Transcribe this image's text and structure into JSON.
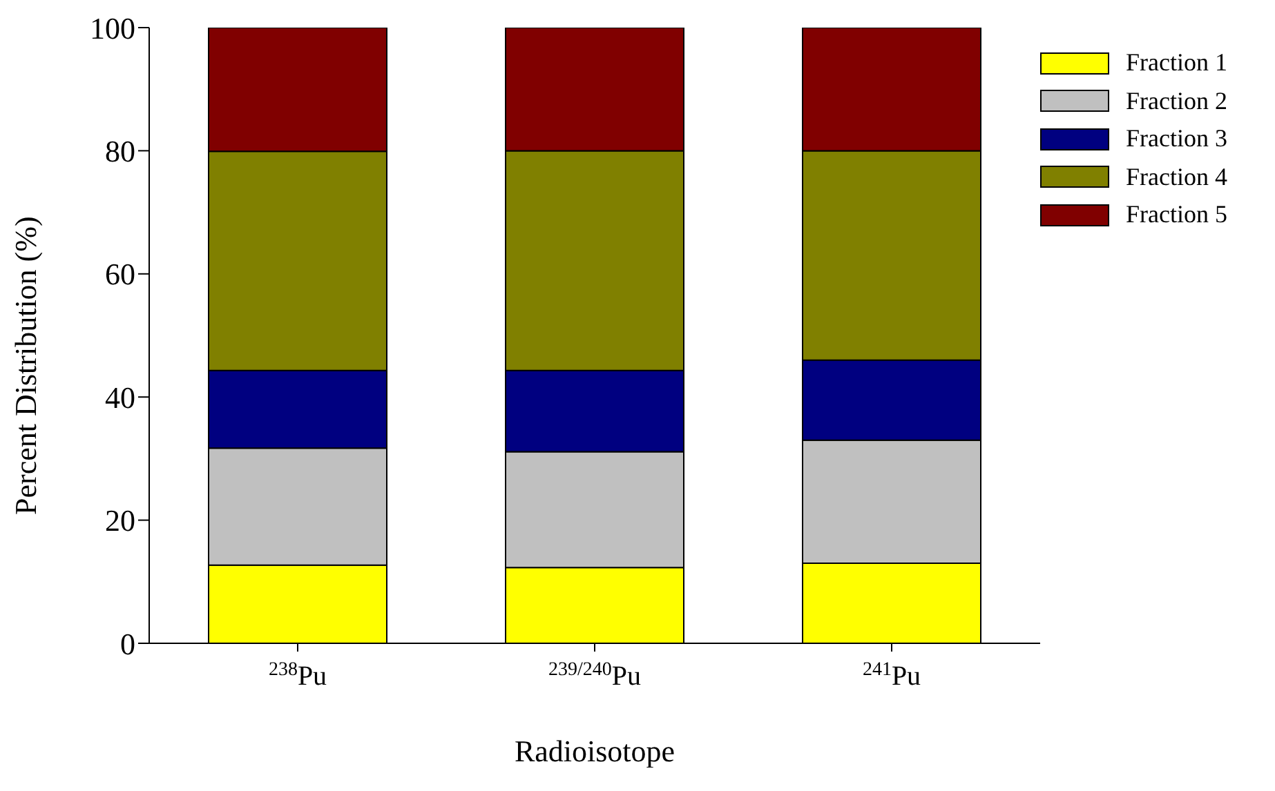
{
  "chart_data": {
    "type": "bar",
    "stacked": true,
    "xlabel": "Radioisotope",
    "ylabel": "Percent Distribution (%)",
    "categories": [
      "$^{238}$Pu",
      "$^{239/240}$Pu",
      "$^{241}$Pu"
    ],
    "series": [
      {
        "name": "Fraction 1",
        "color": "#ffff00",
        "values": [
          12.7,
          12.3,
          13.0
        ]
      },
      {
        "name": "Fraction 2",
        "color": "#c0c0c0",
        "values": [
          19.0,
          18.8,
          20.0
        ]
      },
      {
        "name": "Fraction 3",
        "color": "#000080",
        "values": [
          12.6,
          13.2,
          13.0
        ]
      },
      {
        "name": "Fraction 4",
        "color": "#808000",
        "values": [
          35.6,
          35.7,
          34.0
        ]
      },
      {
        "name": "Fraction 5",
        "color": "#800000",
        "values": [
          20.1,
          20.0,
          20.0
        ]
      }
    ],
    "ylim": [
      0,
      100
    ],
    "yticks": [
      0,
      20,
      40,
      60,
      80,
      100
    ],
    "grid": false,
    "legend": "top right"
  }
}
